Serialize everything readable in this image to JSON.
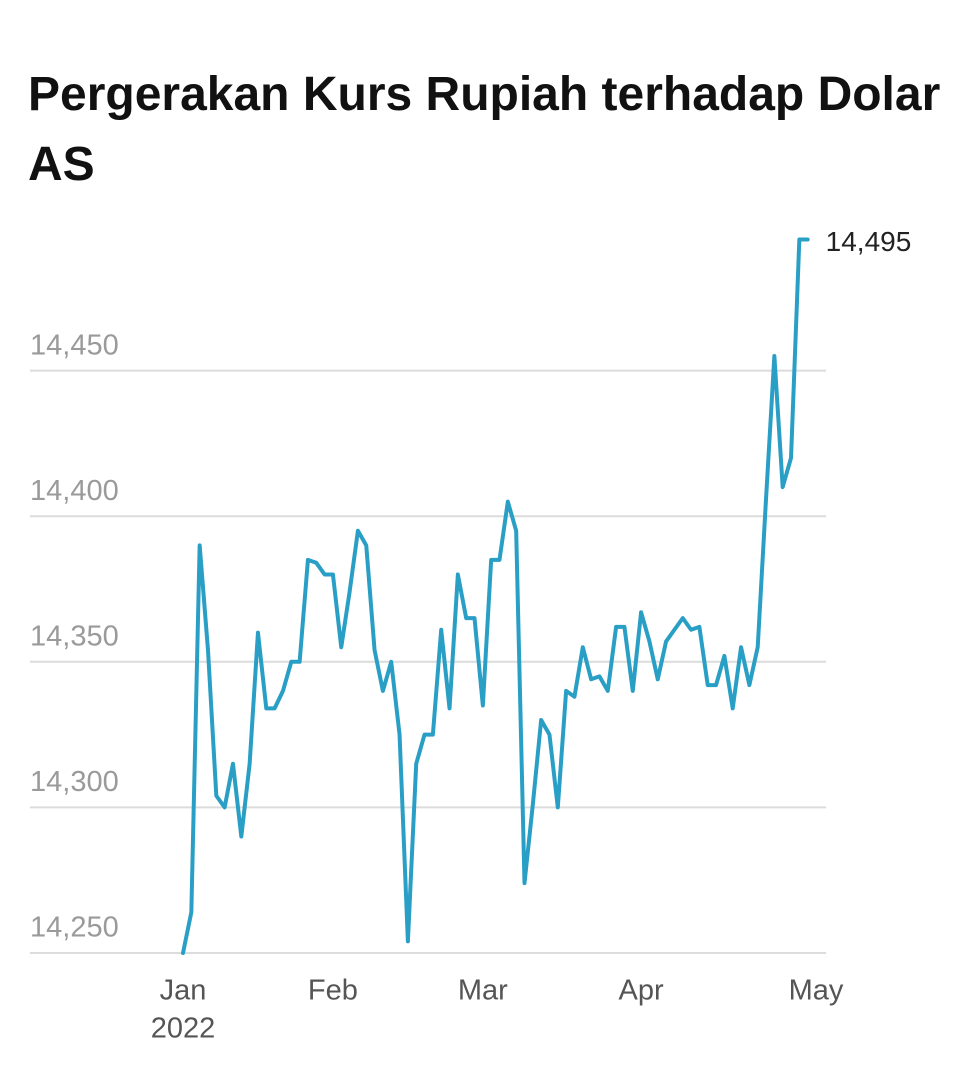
{
  "chart_data": {
    "type": "line",
    "title": "Pergerakan Kurs Rupiah terhadap Dolar AS",
    "categories": [
      "Jan",
      null,
      null,
      null,
      null,
      null,
      null,
      null,
      null,
      null,
      null,
      null,
      null,
      null,
      null,
      null,
      null,
      null,
      "Feb",
      null,
      null,
      null,
      null,
      null,
      null,
      null,
      null,
      null,
      null,
      null,
      null,
      null,
      null,
      null,
      null,
      null,
      "Mar",
      null,
      null,
      null,
      null,
      null,
      null,
      null,
      null,
      null,
      null,
      null,
      null,
      null,
      null,
      null,
      null,
      null,
      null,
      "Apr",
      null,
      null,
      null,
      null,
      null,
      null,
      null,
      null,
      null,
      null,
      null,
      null,
      null,
      null,
      null,
      null,
      null,
      null,
      null,
      null,
      "May"
    ],
    "x_sublabel": "2022",
    "values": [
      14250,
      14264,
      14390,
      14354,
      14304,
      14300,
      14315,
      14290,
      14315,
      14360,
      14334,
      14334,
      14340,
      14350,
      14350,
      14385,
      14384,
      14380,
      14380,
      14355,
      14374,
      14395,
      14390,
      14354,
      14340,
      14350,
      14325,
      14254,
      14315,
      14325,
      14325,
      14361,
      14334,
      14380,
      14365,
      14365,
      14335,
      14385,
      14385,
      14405,
      14395,
      14274,
      14301,
      14330,
      14325,
      14300,
      14340,
      14338,
      14355,
      14344,
      14345,
      14340,
      14362,
      14362,
      14340,
      14367,
      14357,
      14344,
      14357,
      14361,
      14365,
      14361,
      14362,
      14342,
      14342,
      14352,
      14334,
      14355,
      14342,
      14355,
      14406,
      14455,
      14410,
      14420,
      14495,
      14495,
      null
    ],
    "value_labels": [
      null,
      null,
      null,
      null,
      null,
      null,
      null,
      null,
      null,
      null,
      null,
      null,
      null,
      null,
      null,
      null,
      null,
      null,
      null,
      null,
      null,
      null,
      null,
      null,
      null,
      null,
      null,
      null,
      null,
      null,
      null,
      null,
      null,
      null,
      null,
      null,
      null,
      null,
      null,
      null,
      null,
      null,
      null,
      null,
      null,
      null,
      null,
      null,
      null,
      null,
      null,
      null,
      null,
      null,
      null,
      null,
      null,
      null,
      null,
      null,
      null,
      null,
      null,
      null,
      null,
      null,
      null,
      null,
      null,
      null,
      null,
      null,
      null,
      null,
      null,
      "14,495",
      null
    ],
    "color": "#2a9fc6",
    "ylim": [
      14250,
      14500
    ],
    "yticks": [
      {
        "value": 14250,
        "label": "14,250"
      },
      {
        "value": 14300,
        "label": "14,300"
      },
      {
        "value": 14350,
        "label": "14,350"
      },
      {
        "value": 14400,
        "label": "14,400"
      },
      {
        "value": 14450,
        "label": "14,450"
      }
    ],
    "grid": true
  }
}
